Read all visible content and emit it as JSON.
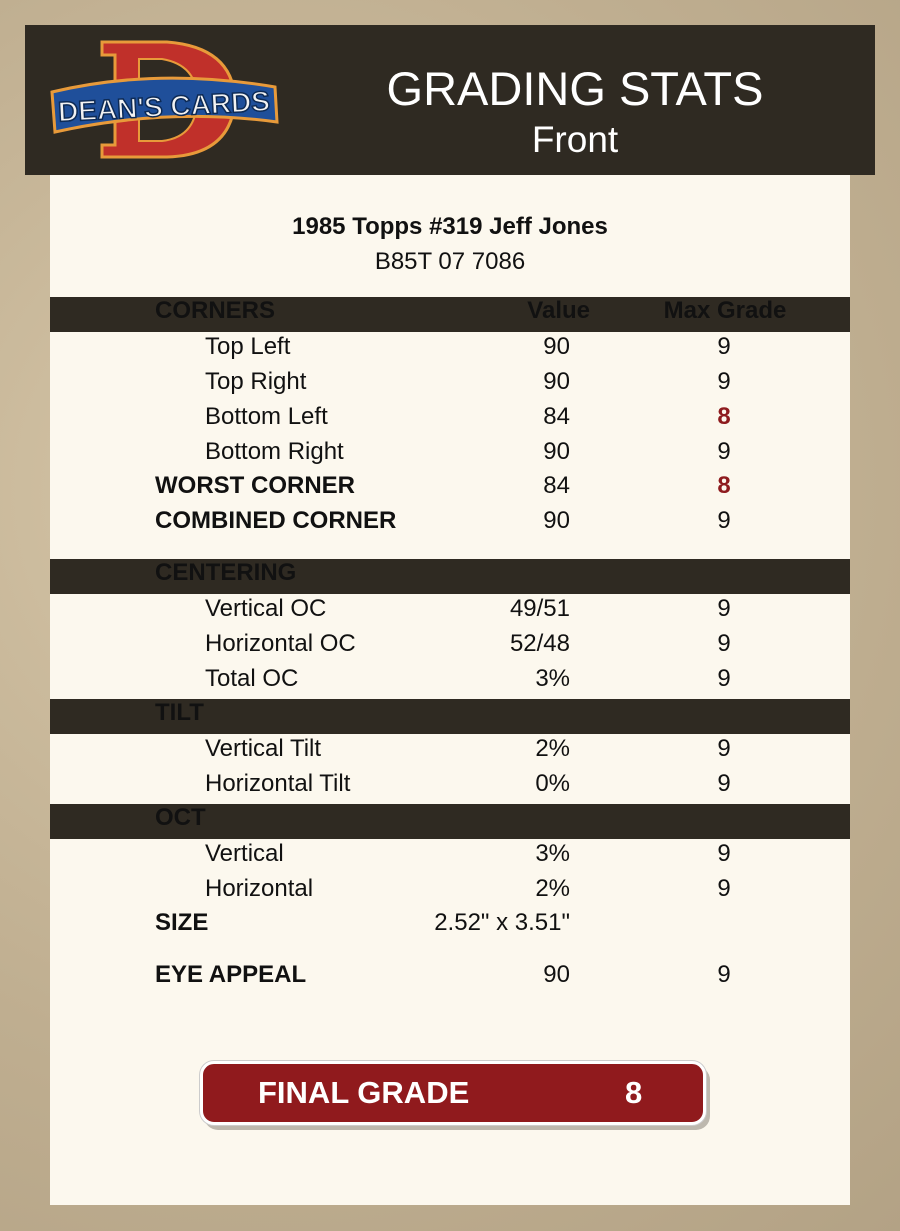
{
  "header": {
    "logo_text": "DEAN'S CARDS",
    "title": "GRADING STATS",
    "subtitle": "Front"
  },
  "card": {
    "name": "1985 Topps #319 Jeff Jones",
    "cert": "B85T 07 7086"
  },
  "columns": {
    "value": "Value",
    "max": "Max Grade"
  },
  "colors": {
    "highlight": "#8e1b1e",
    "final_bg": "#901a1d"
  },
  "rows": [
    {
      "label": "CORNERS",
      "value": "",
      "max": "",
      "kind": "header"
    },
    {
      "label": "Top Left",
      "value": "90",
      "max": "9",
      "kind": "item"
    },
    {
      "label": "Top Right",
      "value": "90",
      "max": "9",
      "kind": "item"
    },
    {
      "label": "Bottom Left",
      "value": "84",
      "max": "8",
      "kind": "item",
      "highlight": true
    },
    {
      "label": "Bottom Right",
      "value": "90",
      "max": "9",
      "kind": "item"
    },
    {
      "label": "WORST CORNER",
      "value": "84",
      "max": "8",
      "kind": "total",
      "highlight": true
    },
    {
      "label": "COMBINED CORNER",
      "value": "90",
      "max": "9",
      "kind": "total"
    },
    {
      "label": "CENTERING",
      "value": "",
      "max": "",
      "kind": "header"
    },
    {
      "label": "Vertical OC",
      "value": "49/51",
      "max": "9",
      "kind": "item"
    },
    {
      "label": "Horizontal OC",
      "value": "52/48",
      "max": "9",
      "kind": "item"
    },
    {
      "label": "Total OC",
      "value": "3%",
      "max": "9",
      "kind": "item"
    },
    {
      "label": "TILT",
      "value": "",
      "max": "",
      "kind": "header"
    },
    {
      "label": "Vertical Tilt",
      "value": "2%",
      "max": "9",
      "kind": "item"
    },
    {
      "label": "Horizontal Tilt",
      "value": "0%",
      "max": "9",
      "kind": "item"
    },
    {
      "label": "OCT",
      "value": "",
      "max": "",
      "kind": "header"
    },
    {
      "label": "Vertical",
      "value": "3%",
      "max": "9",
      "kind": "item"
    },
    {
      "label": "Horizontal",
      "value": "2%",
      "max": "9",
      "kind": "item"
    },
    {
      "label": "SIZE",
      "value": "2.52\" x 3.51\"",
      "max": "",
      "kind": "total"
    },
    {
      "label": "EYE APPEAL",
      "value": "90",
      "max": "9",
      "kind": "total"
    }
  ],
  "final": {
    "label": "FINAL GRADE",
    "value": "8"
  }
}
